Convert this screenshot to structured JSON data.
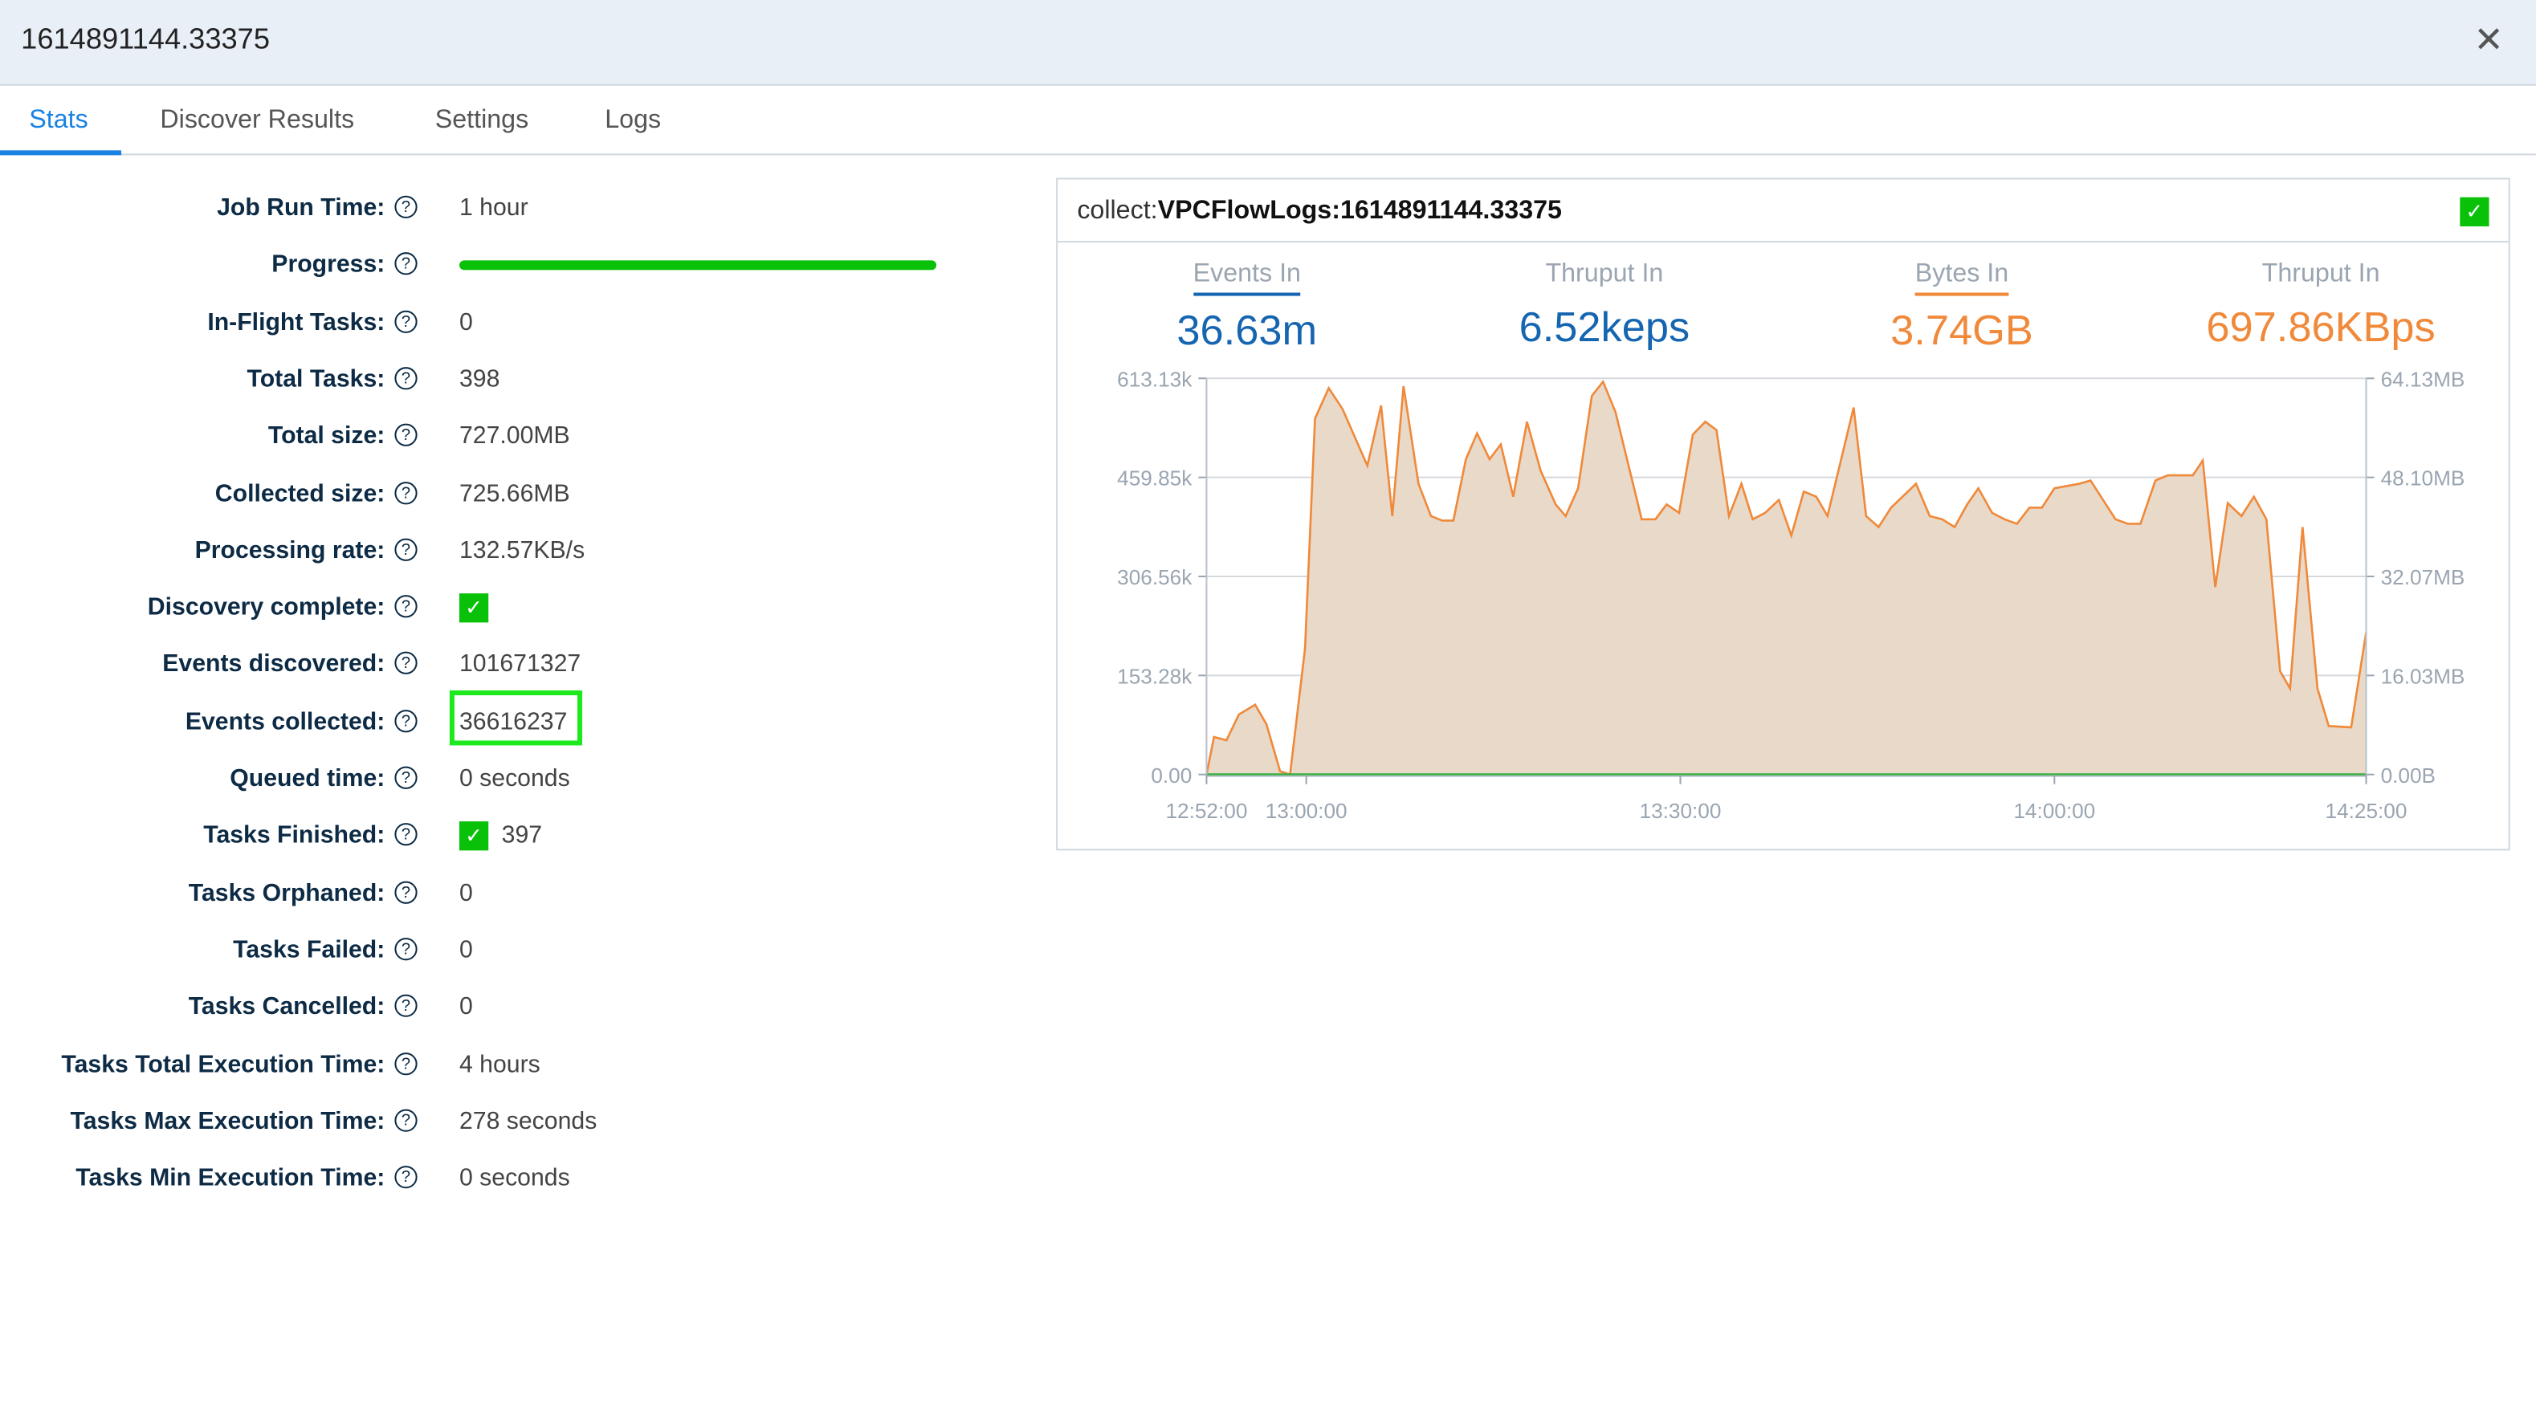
{
  "window": {
    "title": "1614891144.33375",
    "close_icon": "close-icon"
  },
  "tabs": [
    {
      "label": "Stats",
      "active": true
    },
    {
      "label": "Discover Results"
    },
    {
      "label": "Settings"
    },
    {
      "label": "Logs"
    }
  ],
  "stats": [
    {
      "label": "Job Run Time:",
      "value": "1 hour"
    },
    {
      "label": "Progress:",
      "progress": 1.0
    },
    {
      "label": "In-Flight Tasks:",
      "value": "0"
    },
    {
      "label": "Total Tasks:",
      "value": "398"
    },
    {
      "label": "Total size:",
      "value": "727.00MB"
    },
    {
      "label": "Collected size:",
      "value": "725.66MB"
    },
    {
      "label": "Processing rate:",
      "value": "132.57KB/s"
    },
    {
      "label": "Discovery complete:",
      "checked": true
    },
    {
      "label": "Events discovered:",
      "value": "101671327"
    },
    {
      "label": "Events collected:",
      "value": "36616237",
      "highlighted": true
    },
    {
      "label": "Queued time:",
      "value": "0 seconds"
    },
    {
      "label": "Tasks Finished:",
      "value": "397",
      "checked": true
    },
    {
      "label": "Tasks Orphaned:",
      "value": "0"
    },
    {
      "label": "Tasks Failed:",
      "value": "0"
    },
    {
      "label": "Tasks Cancelled:",
      "value": "0"
    },
    {
      "label": "Tasks Total Execution Time:",
      "value": "4 hours"
    },
    {
      "label": "Tasks Max Execution Time:",
      "value": "278 seconds"
    },
    {
      "label": "Tasks Min Execution Time:",
      "value": "0 seconds"
    }
  ],
  "panel": {
    "title_prefix": "collect:",
    "title_name": "VPCFlowLogs:1614891144.33375",
    "metrics": [
      {
        "label": "Events In",
        "value": "36.63m",
        "color": "#1565b0",
        "underline": true
      },
      {
        "label": "Thruput In",
        "value": "6.52keps",
        "color": "#1565b0",
        "underline": false
      },
      {
        "label": "Bytes In",
        "value": "3.74GB",
        "color": "#f0893a",
        "underline": true
      },
      {
        "label": "Thruput In",
        "value": "697.86KBps",
        "color": "#f0893a",
        "underline": false
      }
    ]
  },
  "chart_data": {
    "type": "area",
    "x_start": "12:52:00",
    "x_end": "14:25:00",
    "x_ticks": [
      {
        "label": "12:52:00",
        "min": 0
      },
      {
        "label": "13:00:00",
        "min": 8
      },
      {
        "label": "13:30:00",
        "min": 38
      },
      {
        "label": "14:00:00",
        "min": 68
      },
      {
        "label": "14:25:00",
        "min": 93
      }
    ],
    "y_left_ticks": [
      "0.00",
      "153.28k",
      "306.56k",
      "459.85k",
      "613.13k"
    ],
    "y_right_ticks": [
      "0.00B",
      "16.03MB",
      "32.07MB",
      "48.10MB",
      "64.13MB"
    ],
    "ylim": [
      0,
      613.13
    ],
    "series": [
      {
        "name": "Events In (k)",
        "color": "#f0893a",
        "fill": "#e8d9c8",
        "points": [
          [
            0,
            0
          ],
          [
            0.6,
            58
          ],
          [
            1.6,
            53
          ],
          [
            2.6,
            93
          ],
          [
            3.9,
            108
          ],
          [
            4.8,
            78
          ],
          [
            5.9,
            5
          ],
          [
            6.7,
            0
          ],
          [
            7.9,
            195
          ],
          [
            8.7,
            551
          ],
          [
            9.8,
            598
          ],
          [
            10.9,
            566
          ],
          [
            12.9,
            478
          ],
          [
            14,
            571
          ],
          [
            14.9,
            400
          ],
          [
            15.8,
            601
          ],
          [
            17,
            450
          ],
          [
            18,
            400
          ],
          [
            18.9,
            393
          ],
          [
            19.8,
            393
          ],
          [
            20.8,
            488
          ],
          [
            21.7,
            528
          ],
          [
            22.7,
            488
          ],
          [
            23.6,
            511
          ],
          [
            24.6,
            430
          ],
          [
            25.7,
            546
          ],
          [
            26.8,
            470
          ],
          [
            28,
            418
          ],
          [
            28.8,
            400
          ],
          [
            29.8,
            443
          ],
          [
            30.9,
            586
          ],
          [
            31.8,
            608
          ],
          [
            32.8,
            561
          ],
          [
            34.9,
            395
          ],
          [
            36,
            395
          ],
          [
            36.9,
            418
          ],
          [
            37.9,
            405
          ],
          [
            39,
            526
          ],
          [
            40,
            546
          ],
          [
            40.9,
            533
          ],
          [
            41.9,
            400
          ],
          [
            42.9,
            450
          ],
          [
            43.8,
            395
          ],
          [
            44.8,
            405
          ],
          [
            45.9,
            425
          ],
          [
            46.9,
            370
          ],
          [
            47.9,
            438
          ],
          [
            48.9,
            430
          ],
          [
            49.8,
            400
          ],
          [
            51.9,
            568
          ],
          [
            52.9,
            400
          ],
          [
            53.9,
            383
          ],
          [
            54.9,
            413
          ],
          [
            56.9,
            450
          ],
          [
            58,
            400
          ],
          [
            59,
            395
          ],
          [
            60,
            383
          ],
          [
            61,
            418
          ],
          [
            61.9,
            443
          ],
          [
            63,
            405
          ],
          [
            64,
            395
          ],
          [
            65,
            388
          ],
          [
            66,
            413
          ],
          [
            67,
            413
          ],
          [
            68,
            443
          ],
          [
            70,
            450
          ],
          [
            70.9,
            455
          ],
          [
            72.9,
            395
          ],
          [
            73.9,
            388
          ],
          [
            74.9,
            388
          ],
          [
            76.1,
            455
          ],
          [
            77.1,
            463
          ],
          [
            79.1,
            463
          ],
          [
            79.9,
            486
          ],
          [
            80.9,
            290
          ],
          [
            81.9,
            420
          ],
          [
            83,
            400
          ],
          [
            84,
            430
          ],
          [
            85,
            395
          ],
          [
            86.1,
            160
          ],
          [
            86.9,
            133
          ],
          [
            87.9,
            383
          ],
          [
            89.1,
            133
          ],
          [
            90,
            75
          ],
          [
            91.8,
            73
          ],
          [
            93,
            220
          ]
        ]
      }
    ]
  }
}
